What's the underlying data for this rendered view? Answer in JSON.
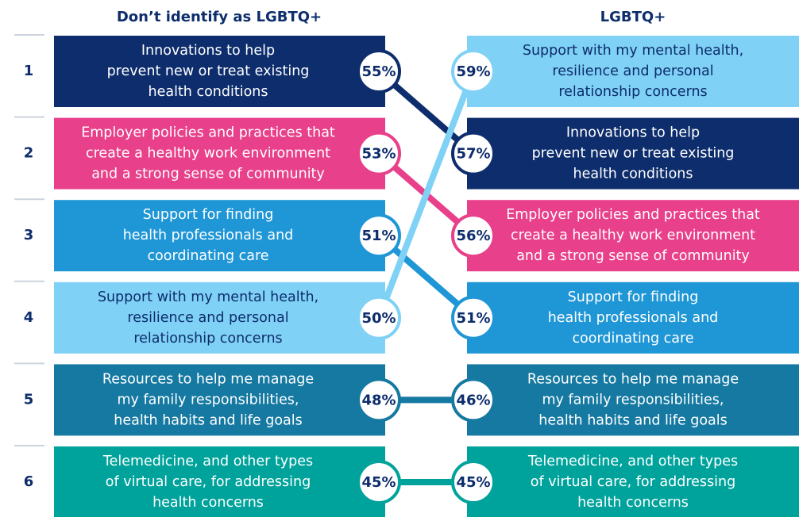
{
  "headers": {
    "left": "Don’t identify as LGBTQ+",
    "right": "LGBTQ+"
  },
  "ranks": [
    "1",
    "2",
    "3",
    "4",
    "5",
    "6"
  ],
  "left": [
    {
      "label": [
        "Innovations to help",
        "prevent new or treat existing",
        "health conditions"
      ],
      "value": "55%",
      "color": "#0d2d6c"
    },
    {
      "label": [
        "Employer policies and practices that",
        "create a healthy work environment",
        "and a strong sense of community"
      ],
      "value": "53%",
      "color": "#e8408a"
    },
    {
      "label": [
        "Support for finding",
        "health professionals and",
        "coordinating care"
      ],
      "value": "51%",
      "color": "#1f96d6"
    },
    {
      "label": [
        "Support with my mental health,",
        "resilience and personal",
        "relationship concerns"
      ],
      "value": "50%",
      "color": "#80d1f6"
    },
    {
      "label": [
        "Resources to help me manage",
        "my family responsibilities,",
        "health habits and life goals"
      ],
      "value": "48%",
      "color": "#1579a2"
    },
    {
      "label": [
        "Telemedicine, and other types",
        "of virtual care, for addressing",
        "health concerns"
      ],
      "value": "45%",
      "color": "#00a39b"
    }
  ],
  "right": [
    {
      "label": [
        "Support with my mental health,",
        "resilience and personal",
        "relationship concerns"
      ],
      "value": "59%",
      "color": "#80d1f6"
    },
    {
      "label": [
        "Innovations to help",
        "prevent new or treat existing",
        "health conditions"
      ],
      "value": "57%",
      "color": "#0d2d6c"
    },
    {
      "label": [
        "Employer policies and practices that",
        "create a healthy work environment",
        "and a strong sense of community"
      ],
      "value": "56%",
      "color": "#e8408a"
    },
    {
      "label": [
        "Support for finding",
        "health professionals and",
        "coordinating care"
      ],
      "value": "51%",
      "color": "#1f96d6"
    },
    {
      "label": [
        "Resources to help me manage",
        "my family responsibilities,",
        "health habits and life goals"
      ],
      "value": "46%",
      "color": "#1579a2"
    },
    {
      "label": [
        "Telemedicine, and other types",
        "of virtual care, for addressing",
        "health concerns"
      ],
      "value": "45%",
      "color": "#00a39b"
    }
  ]
}
